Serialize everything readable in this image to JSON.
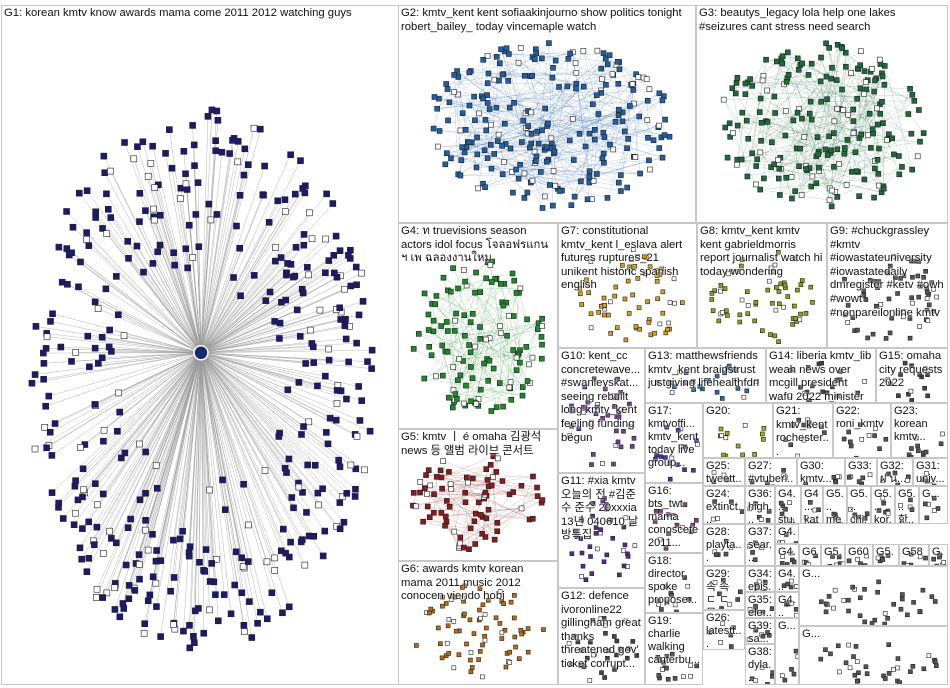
{
  "groups": [
    {
      "id": "G1",
      "label": "G1: korean kmtv know awards mama come 2011 2012 watching guys",
      "color": "#1a1a6e"
    },
    {
      "id": "G2",
      "label": "G2: kmtv_kent kent sofiaakinjourno show politics tonight robert_bailey_ today vincemaple watch",
      "color": "#1f5fa8"
    },
    {
      "id": "G3",
      "label": "G3: beautys_legacy lola help one lakes #seizures cant stress need search",
      "color": "#1e6b3a"
    },
    {
      "id": "G4",
      "label": "G4: ท truevisions season actors idol focus โจลอฟรแกน ฯ เพ ฉลองงานใหม",
      "color": "#1d8a2a"
    },
    {
      "id": "G5",
      "label": "G5: kmtv ㅣ é omaha 김광석 news 등 앨범 라이브 콘서트",
      "color": "#8b1a1a"
    },
    {
      "id": "G6",
      "label": "G6: awards kmtv korean mama 2011 music 2012 conocen viendo hobi",
      "color": "#c06a10"
    },
    {
      "id": "G7",
      "label": "G7: constitutional kmtv_kent l_eslava alert futures ruptures_21 unikent historic spanish english",
      "color": "#d4a017"
    },
    {
      "id": "G8",
      "label": "G8: kmtv_kent kmtv kent gabrieldmorris report journalist watch hi today wondering",
      "color": "#8aa31a"
    },
    {
      "id": "G9",
      "label": "G9: #chuckgrassley #kmtv #iowastateuniversity #iowastatedaily dmregister #ketv #owh #wowt #nonpareilonline kmtv",
      "color": "#555"
    },
    {
      "id": "G10",
      "label": "G10: kent_cc concretewave... #swanleyskat... seeing rebuilt long kmtv_kent feeling funding begun",
      "color": "#7a3a9a"
    },
    {
      "id": "G11",
      "label": "G11: #xia kmtv 오늘의 전 #김준수 준수 20xxxia 13년 040610 날방특집",
      "color": "#5a2a8a"
    },
    {
      "id": "G12",
      "label": "G12: defence ivoronline22 gillingham great thanks threatened gov' ticket corrupt...",
      "color": "#444"
    },
    {
      "id": "G13",
      "label": "G13: matthewsfriends kmtv_kent brainstrust justgiving lifehealthfdn",
      "color": "#2a6aa8"
    },
    {
      "id": "G14",
      "label": "G14: liberia kmtv_lib weah news over mcgill president wafu 2022 minister",
      "color": "#444"
    },
    {
      "id": "G15",
      "label": "G15: omaha city requests 2022",
      "color": "#444"
    },
    {
      "id": "G16",
      "label": "G16: bts_twt mama conoscete 2011...",
      "color": "#8a3a8a"
    },
    {
      "id": "G17",
      "label": "G17: kmtvoffi... kmtv_kent today live group...",
      "color": "#3a3aa8"
    },
    {
      "id": "G18",
      "label": "G18: director spoke propose...",
      "color": "#555"
    },
    {
      "id": "G19",
      "label": "G19: charlie walking canterbu...",
      "color": "#555"
    },
    {
      "id": "G20",
      "label": "G20:",
      "color": "#a8a81a"
    },
    {
      "id": "G21",
      "label": "G21: kmtv_kent rochester...",
      "color": "#555"
    },
    {
      "id": "G22",
      "label": "G22: roni_kmtv",
      "color": "#555"
    },
    {
      "id": "G23",
      "label": "G23: korean kmtv...",
      "color": "#555"
    },
    {
      "id": "G24",
      "label": "G24: extinct... fullych...",
      "color": "#555"
    },
    {
      "id": "G25",
      "label": "G25: tweett...",
      "color": "#555"
    },
    {
      "id": "G26",
      "label": "G26: latestt... sheffi...",
      "color": "#555"
    },
    {
      "id": "G27",
      "label": "G27: #vtuberi...",
      "color": "#555"
    },
    {
      "id": "G28",
      "label": "G28: playta... bbcint...",
      "color": "#555"
    },
    {
      "id": "G29",
      "label": "G29: 속 속 ㄷ ㄷ 모...",
      "color": "#555"
    },
    {
      "id": "G30",
      "label": "G30: kmtv...",
      "color": "#555"
    },
    {
      "id": "G31",
      "label": "G31: univ...",
      "color": "#555"
    },
    {
      "id": "G32",
      "label": "G32: ฝ น...",
      "color": "#555"
    },
    {
      "id": "G33",
      "label": "G33:",
      "color": "#555"
    },
    {
      "id": "G34",
      "label": "G34: epis...",
      "color": "#555"
    },
    {
      "id": "G35",
      "label": "G35: ele...",
      "color": "#555"
    },
    {
      "id": "G36",
      "label": "G36: high...",
      "color": "#555"
    },
    {
      "id": "G37",
      "label": "G37: sear...",
      "color": "#555"
    },
    {
      "id": "G38",
      "label": "G38: dyla...",
      "color": "#555"
    },
    {
      "id": "G39",
      "label": "G39: sa...",
      "color": "#555"
    },
    {
      "id": "G4x1",
      "label": "G4... stu...",
      "color": "#555"
    },
    {
      "id": "G4x2",
      "label": "G4... kat...",
      "color": "#555"
    },
    {
      "id": "G5x1",
      "label": "G5... me...",
      "color": "#555"
    },
    {
      "id": "G5x2",
      "label": "G5... chi...",
      "color": "#555"
    },
    {
      "id": "G5x3",
      "label": "G5... kor...",
      "color": "#555"
    },
    {
      "id": "G5x4",
      "label": "G5... 한...",
      "color": "#555"
    },
    {
      "id": "G4x3",
      "label": "G4... kor...",
      "color": "#555"
    },
    {
      "id": "G4x4",
      "label": "G4... ch...",
      "color": "#555"
    },
    {
      "id": "G4x5",
      "label": "G4... gr...",
      "color": "#555"
    },
    {
      "id": "G4x6",
      "label": "G4... 7...",
      "color": "#555"
    },
    {
      "id": "G6x",
      "label": "G6...",
      "color": "#555"
    },
    {
      "id": "G5x5",
      "label": "G5...",
      "color": "#555"
    },
    {
      "id": "G60",
      "label": "G60",
      "color": "#555"
    },
    {
      "id": "G5x6",
      "label": "G5...",
      "color": "#555"
    },
    {
      "id": "G58",
      "label": "G58",
      "color": "#555"
    },
    {
      "id": "Gxa",
      "label": "G...",
      "color": "#555"
    },
    {
      "id": "Gxb",
      "label": "G...",
      "color": "#555"
    },
    {
      "id": "Gxc",
      "label": "G...",
      "color": "#555"
    },
    {
      "id": "Gxd",
      "label": "G...",
      "color": "#555"
    },
    {
      "id": "Gxe",
      "label": "G...",
      "color": "#555"
    }
  ]
}
